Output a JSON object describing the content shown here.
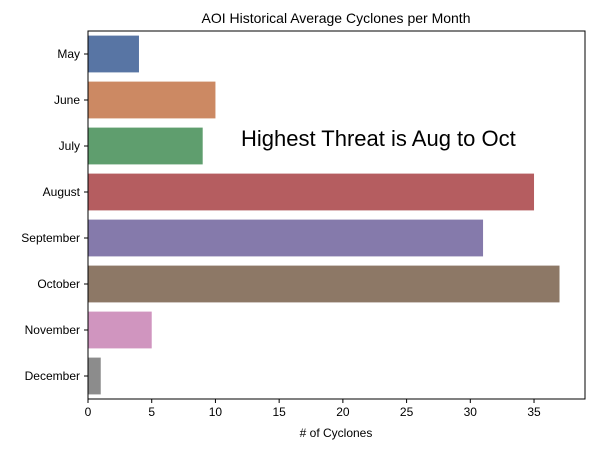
{
  "chart_data": {
    "type": "bar",
    "orientation": "horizontal",
    "title": "AOI Historical Average Cyclones per Month",
    "xlabel": "# of Cyclones",
    "ylabel": "",
    "categories": [
      "May",
      "June",
      "July",
      "August",
      "September",
      "October",
      "November",
      "December"
    ],
    "values": [
      4,
      10,
      9,
      35,
      31,
      37,
      5,
      1
    ],
    "colors": [
      "#5875a4",
      "#cc8963",
      "#5f9e6e",
      "#b55d60",
      "#857aab",
      "#8d7866",
      "#d095bf",
      "#8c8c8c"
    ],
    "xlim": [
      0,
      39
    ],
    "xticks": [
      0,
      5,
      10,
      15,
      20,
      25,
      30,
      35
    ],
    "annotation": "Highest Threat is Aug to Oct",
    "grid": false
  }
}
